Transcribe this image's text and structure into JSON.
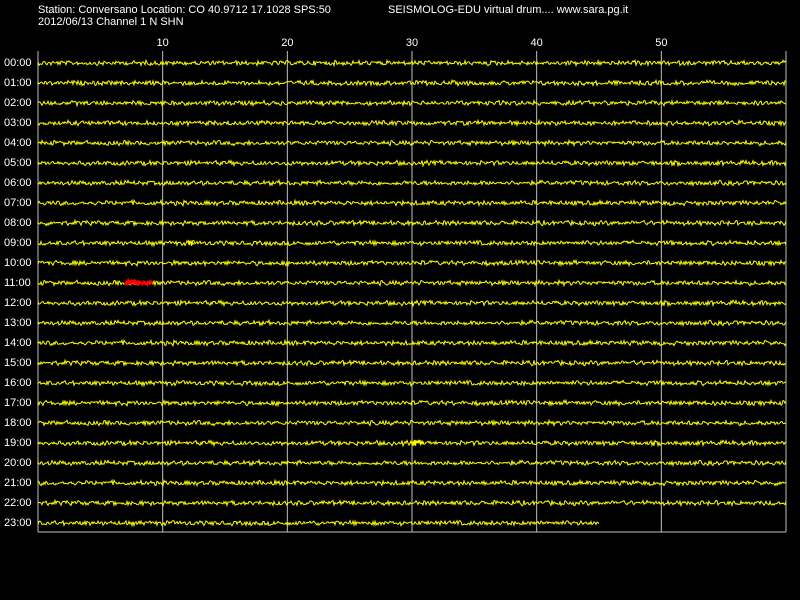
{
  "header": {
    "station_line": "Station: Conversano Location: CO 40.9712 17.1028 SPS:50",
    "program_line": "SEISMOLOG-EDU virtual drum.... www.sara.pg.it",
    "date_line": "2012/06/13  Channel 1 N SHN"
  },
  "minute_labels": [
    "10",
    "20",
    "30",
    "40",
    "50"
  ],
  "hour_labels": [
    "00:00",
    "01:00",
    "02:00",
    "03:00",
    "04:00",
    "05:00",
    "06:00",
    "07:00",
    "08:00",
    "09:00",
    "10:00",
    "11:00",
    "12:00",
    "13:00",
    "14:00",
    "15:00",
    "16:00",
    "17:00",
    "18:00",
    "19:00",
    "20:00",
    "21:00",
    "22:00",
    "23:00"
  ],
  "colors": {
    "background": "#000000",
    "grid": "#c0c0c0",
    "trace": "#ffff00",
    "event": "#ff0000",
    "text": "#ffffff"
  },
  "drum": {
    "minutes_per_row": 60,
    "last_row_end_minute": 45,
    "events": [
      {
        "hour": "11:00",
        "start_minute": 7,
        "end_minute": 9.2,
        "color": "red"
      },
      {
        "hour": "09:00",
        "start_minute": 12,
        "end_minute": 12.5,
        "color": "yellow"
      },
      {
        "hour": "19:00",
        "start_minute": 29.8,
        "end_minute": 31,
        "color": "yellow"
      }
    ]
  }
}
